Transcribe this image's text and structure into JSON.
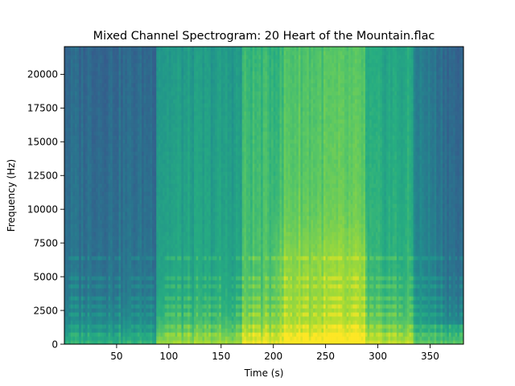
{
  "chart_data": {
    "type": "heatmap",
    "title": "Mixed Channel Spectrogram: 20 Heart of the Mountain.flac",
    "xlabel": "Time (s)",
    "ylabel": "Frequency (Hz)",
    "xlim": [
      0,
      382
    ],
    "ylim": [
      0,
      22050
    ],
    "x_ticks": [
      50,
      100,
      150,
      200,
      250,
      300,
      350
    ],
    "y_ticks": [
      0,
      2500,
      5000,
      7500,
      10000,
      12500,
      15000,
      17500,
      20000
    ],
    "grid": false,
    "colormap": "viridis",
    "sections": [
      {
        "t_start": 0,
        "t_end": 3,
        "level": 0.4
      },
      {
        "t_start": 3,
        "t_end": 88,
        "level": 0.4
      },
      {
        "t_start": 88,
        "t_end": 171,
        "level": 0.6
      },
      {
        "t_start": 171,
        "t_end": 211,
        "level": 0.72
      },
      {
        "t_start": 211,
        "t_end": 288,
        "level": 0.78
      },
      {
        "t_start": 288,
        "t_end": 335,
        "level": 0.65
      },
      {
        "t_start": 335,
        "t_end": 382,
        "level": 0.5
      }
    ],
    "tonal_lines_hz": [
      700,
      1400,
      2100,
      2800,
      3500,
      4200,
      4900,
      6300
    ]
  }
}
